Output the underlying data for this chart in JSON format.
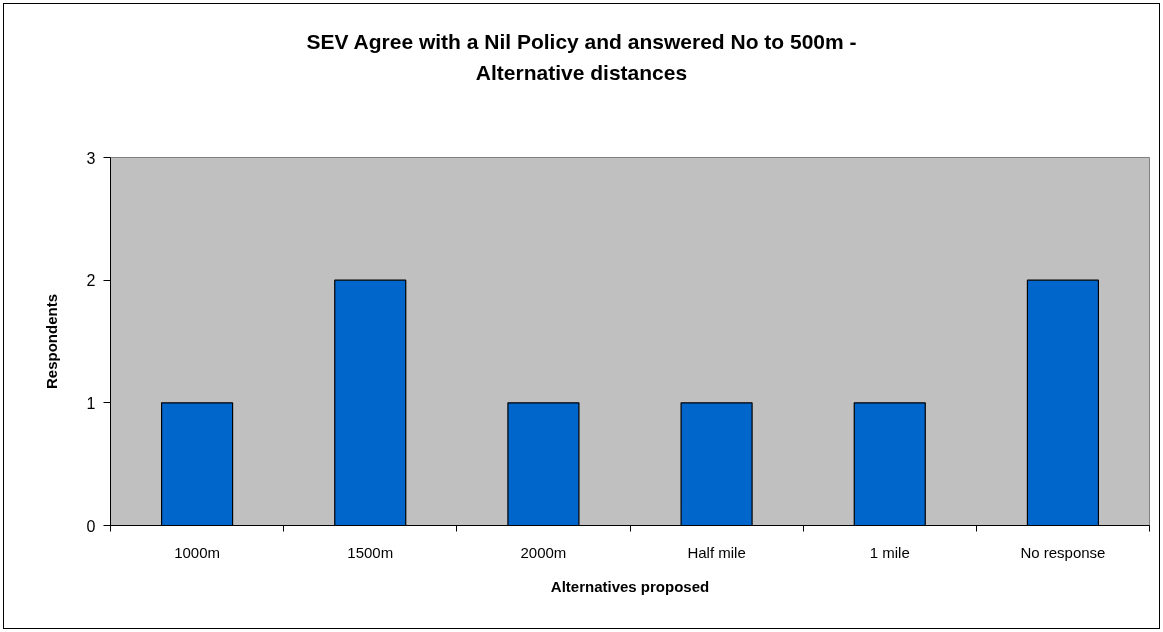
{
  "chart_data": {
    "type": "bar",
    "title": "SEV Agree with a Nil Policy and answered No to 500m - Alternative distances",
    "xlabel": "Alternatives proposed",
    "ylabel": "Respondents",
    "categories": [
      "1000m",
      "1500m",
      "2000m",
      "Half mile",
      "1 mile",
      "No response"
    ],
    "values": [
      1,
      2,
      1,
      1,
      1,
      2
    ],
    "color": "#0066cc",
    "ylim": [
      0,
      3
    ],
    "yticks": [
      0,
      1,
      2,
      3
    ],
    "grid": false
  }
}
